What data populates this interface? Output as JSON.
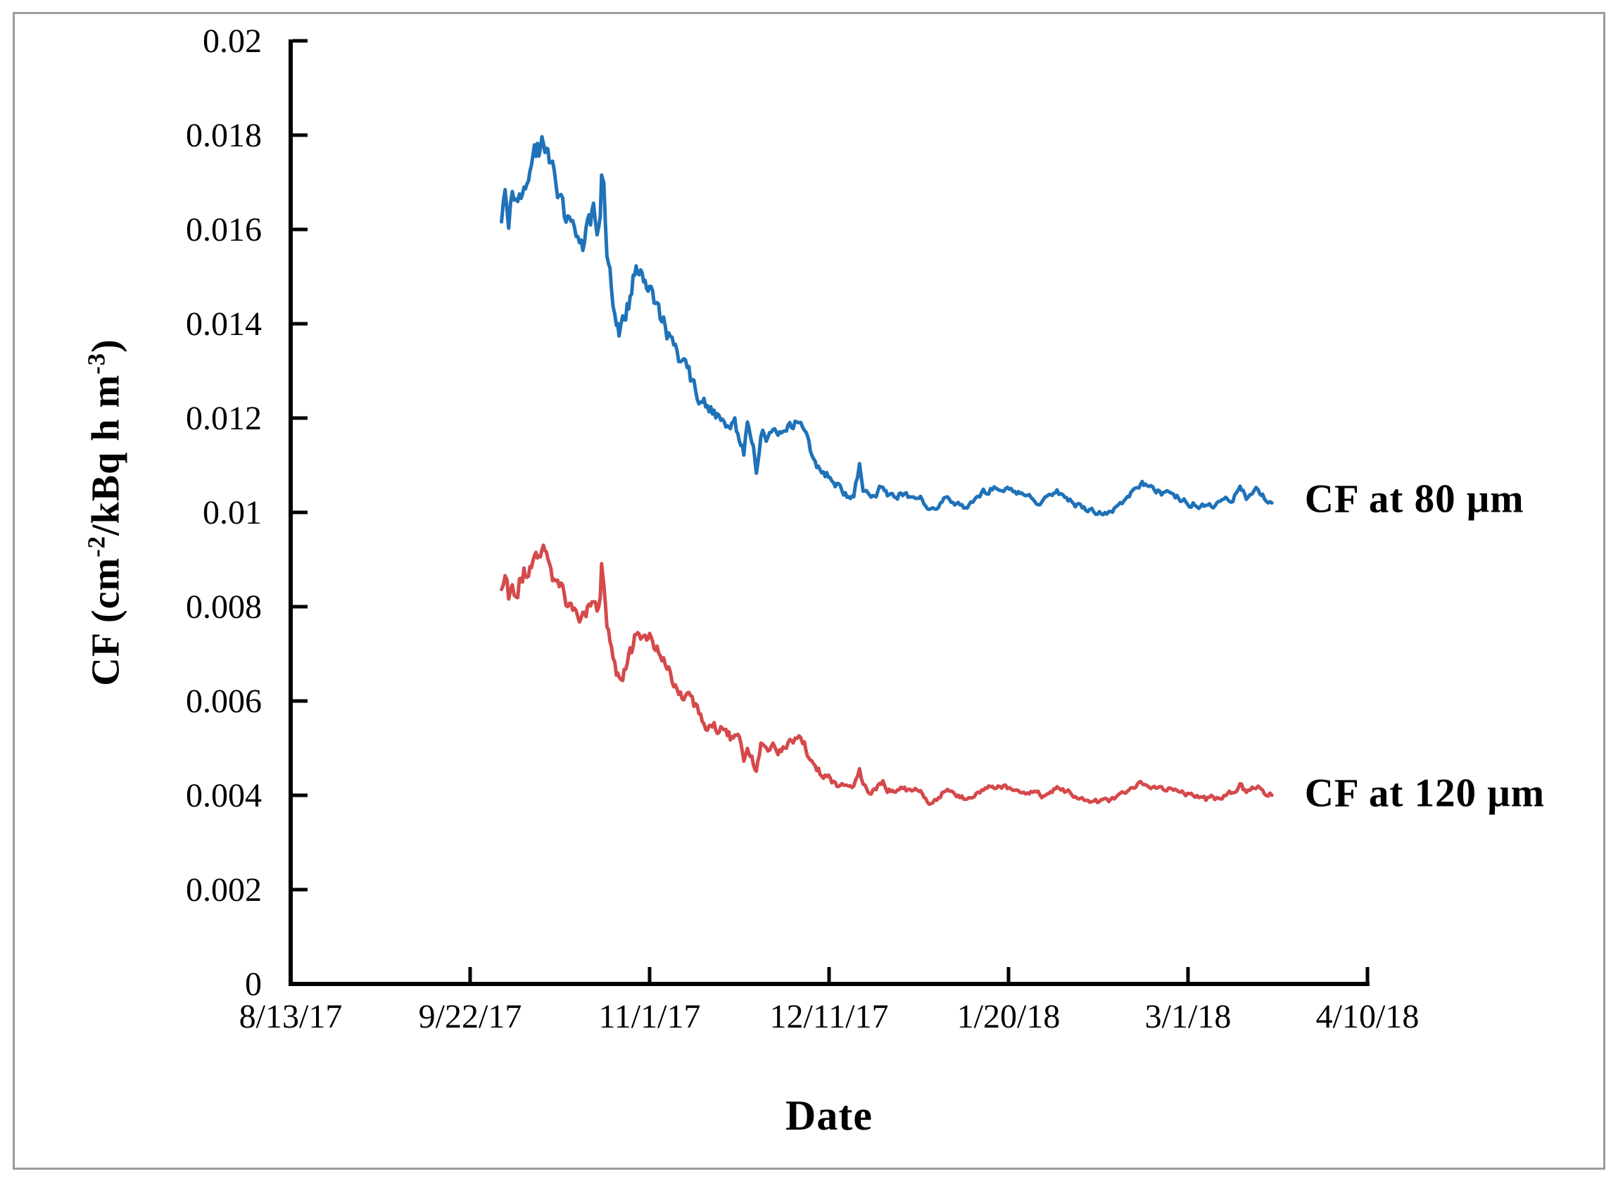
{
  "figure": {
    "background": "#ffffff",
    "border_color": "#9c9c9c",
    "axis_color": "#000000",
    "text_color": "#000000"
  },
  "chart_data": {
    "type": "line",
    "title": "",
    "xlabel": "Date",
    "ylabel": "CF (cm-2/kBq h m-3)",
    "ylabel_segments": [
      {
        "text": "CF (cm"
      },
      {
        "sup": "-2"
      },
      {
        "text": "/kBq h m"
      },
      {
        "sup": "-3"
      },
      {
        "text": ")"
      }
    ],
    "grid": false,
    "legend_position": "inline-right-labels",
    "x_axis": {
      "unit": "days since 8/13/17",
      "range": [
        0,
        240
      ],
      "ticks": [
        {
          "day": 0,
          "label": "8/13/17"
        },
        {
          "day": 40,
          "label": "9/22/17"
        },
        {
          "day": 80,
          "label": "11/1/17"
        },
        {
          "day": 120,
          "label": "12/11/17"
        },
        {
          "day": 160,
          "label": "1/20/18"
        },
        {
          "day": 200,
          "label": "3/1/18"
        },
        {
          "day": 240,
          "label": "4/10/18"
        }
      ]
    },
    "y_axis": {
      "range": [
        0,
        0.02
      ],
      "tick_step": 0.002,
      "tick_labels": [
        "0",
        "0.002",
        "0.004",
        "0.006",
        "0.008",
        "0.01",
        "0.012",
        "0.014",
        "0.016",
        "0.018",
        "0.02"
      ]
    },
    "series": [
      {
        "name": "CF at 80 μm",
        "color": "#1f72b8",
        "label_anchor": {
          "day": 226,
          "value": 0.01028
        },
        "noise": {
          "start": 0.0003,
          "end": 7e-05,
          "decay_until_day": 130,
          "seed": 20817
        },
        "days": [
          47,
          47.8,
          48.6,
          49.4,
          50.2,
          51,
          52,
          53,
          54,
          55,
          56,
          57,
          58,
          59.5,
          61,
          62.5,
          64,
          65.5,
          66.5,
          67.5,
          68.3,
          69,
          69.3,
          69.8,
          70.5,
          71.5,
          72.6,
          73.2,
          74,
          75,
          76,
          77,
          78,
          79,
          80,
          81,
          82,
          83.5,
          85,
          86.5,
          88,
          89.5,
          91,
          92.5,
          94,
          95.5,
          97,
          98,
          99,
          100,
          101,
          101.8,
          102.8,
          103.8,
          104.8,
          106,
          107.5,
          109,
          110.5,
          112,
          113.3,
          114.5,
          115.5,
          116.5,
          118,
          119.5,
          121,
          122.5,
          124,
          125.5,
          126.8,
          127.6,
          129,
          130.5,
          132,
          133,
          134.5,
          136,
          138,
          140,
          142.3,
          144,
          146,
          148,
          150,
          152,
          154,
          156.4,
          158.5,
          161,
          163,
          164.6,
          167.4,
          169,
          170.8,
          172.1,
          174.5,
          176.8,
          179,
          181.5,
          184,
          186.2,
          188,
          189.1,
          190.5,
          192.5,
          194.5,
          196.4,
          198.3,
          200.3,
          202,
          204,
          206,
          208,
          210,
          211.6,
          213,
          215.6,
          217,
          218.7
        ],
        "values": [
          0.0164,
          0.0167,
          0.0162,
          0.0166,
          0.0163,
          0.0168,
          0.0171,
          0.0169,
          0.0174,
          0.0176,
          0.0178,
          0.0175,
          0.0172,
          0.0168,
          0.0164,
          0.016,
          0.0158,
          0.0157,
          0.0161,
          0.0163,
          0.0158,
          0.0162,
          0.0171,
          0.0168,
          0.0157,
          0.0148,
          0.014,
          0.0137,
          0.0139,
          0.0143,
          0.0147,
          0.0153,
          0.0152,
          0.015,
          0.0147,
          0.0145,
          0.0143,
          0.0139,
          0.0135,
          0.0132,
          0.013,
          0.0128,
          0.0125,
          0.0122,
          0.0121,
          0.012,
          0.0119,
          0.0117,
          0.0119,
          0.0116,
          0.0112,
          0.0118,
          0.0115,
          0.0109,
          0.0117,
          0.0116,
          0.0117,
          0.0116,
          0.0118,
          0.0119,
          0.012,
          0.0118,
          0.0114,
          0.0111,
          0.0109,
          0.0108,
          0.0106,
          0.0105,
          0.0104,
          0.0104,
          0.011,
          0.0105,
          0.0103,
          0.0104,
          0.0106,
          0.0104,
          0.0103,
          0.0104,
          0.0103,
          0.0104,
          0.01,
          0.0101,
          0.0104,
          0.0102,
          0.0101,
          0.0102,
          0.0104,
          0.0105,
          0.0105,
          0.0104,
          0.0104,
          0.0103,
          0.0102,
          0.0103,
          0.0104,
          0.0104,
          0.0102,
          0.0101,
          0.01,
          0.01,
          0.0101,
          0.0103,
          0.0105,
          0.0106,
          0.0106,
          0.0105,
          0.0104,
          0.0104,
          0.0103,
          0.0102,
          0.0102,
          0.0101,
          0.0101,
          0.0102,
          0.0103,
          0.0105,
          0.0103,
          0.0105,
          0.0103,
          0.0102
        ]
      },
      {
        "name": "CF at 120 μm",
        "color": "#d5494a",
        "label_anchor": {
          "day": 226,
          "value": 0.00405
        },
        "noise": {
          "start": 0.00022,
          "end": 6e-05,
          "decay_until_day": 130,
          "seed": 912077
        },
        "days": [
          47,
          47.8,
          48.6,
          49.4,
          50.2,
          51,
          52,
          53,
          54,
          55,
          56,
          57,
          58,
          59.5,
          61,
          62.5,
          64,
          65.5,
          66.5,
          67.5,
          68.3,
          69,
          69.3,
          69.8,
          70.5,
          71.5,
          72.6,
          73.2,
          74,
          75,
          76,
          77,
          78,
          79,
          80,
          81,
          82,
          83.5,
          85,
          86.5,
          88,
          89.5,
          91,
          92.5,
          94,
          95.5,
          97,
          98,
          99,
          100,
          101,
          101.8,
          102.8,
          103.8,
          104.8,
          106,
          107.5,
          109,
          110.5,
          112,
          113.3,
          114.5,
          115.5,
          116.5,
          118,
          119.5,
          121,
          122.5,
          124,
          125.5,
          126.8,
          127.6,
          129,
          130.5,
          132,
          133,
          134.5,
          136,
          138,
          140,
          142.3,
          144,
          146,
          148,
          150,
          152,
          154,
          156.4,
          158.5,
          161,
          163,
          164.6,
          167.4,
          169,
          170.8,
          172.1,
          174.5,
          176.8,
          179,
          181.5,
          184,
          186.2,
          188,
          189.1,
          190.5,
          192.5,
          194.5,
          196.4,
          198.3,
          200.3,
          202,
          204,
          206,
          208,
          210,
          211.6,
          213,
          215.6,
          217,
          218.7
        ],
        "values": [
          0.00824,
          0.00844,
          0.0081,
          0.00837,
          0.00817,
          0.00851,
          0.00872,
          0.00858,
          0.00892,
          0.00906,
          0.0092,
          0.00899,
          0.00879,
          0.00851,
          0.00824,
          0.00796,
          0.00783,
          0.00776,
          0.00803,
          0.00817,
          0.00783,
          0.0081,
          0.00872,
          0.00851,
          0.00776,
          0.00714,
          0.0066,
          0.00639,
          0.00653,
          0.0068,
          0.00707,
          0.00748,
          0.00742,
          0.00728,
          0.00727,
          0.00714,
          0.007,
          0.00673,
          0.00645,
          0.00625,
          0.00611,
          0.00597,
          0.00577,
          0.00556,
          0.0055,
          0.00543,
          0.00536,
          0.00522,
          0.00536,
          0.00515,
          0.00468,
          0.00509,
          0.00489,
          0.00448,
          0.00502,
          0.00495,
          0.00502,
          0.00495,
          0.00509,
          0.00516,
          0.00523,
          0.00509,
          0.00482,
          0.00461,
          0.00448,
          0.00441,
          0.00427,
          0.0042,
          0.00413,
          0.00413,
          0.00454,
          0.0042,
          0.00407,
          0.00413,
          0.00427,
          0.00413,
          0.00407,
          0.00413,
          0.00407,
          0.00413,
          0.00386,
          0.00393,
          0.00413,
          0.004,
          0.00393,
          0.004,
          0.00413,
          0.0042,
          0.0042,
          0.00413,
          0.00413,
          0.00407,
          0.004,
          0.00407,
          0.00413,
          0.00413,
          0.004,
          0.00393,
          0.00386,
          0.00386,
          0.00393,
          0.00407,
          0.0042,
          0.00427,
          0.00427,
          0.0042,
          0.00413,
          0.00413,
          0.00407,
          0.004,
          0.004,
          0.00393,
          0.00393,
          0.004,
          0.00407,
          0.0042,
          0.00407,
          0.0042,
          0.00407,
          0.004
        ]
      }
    ]
  }
}
